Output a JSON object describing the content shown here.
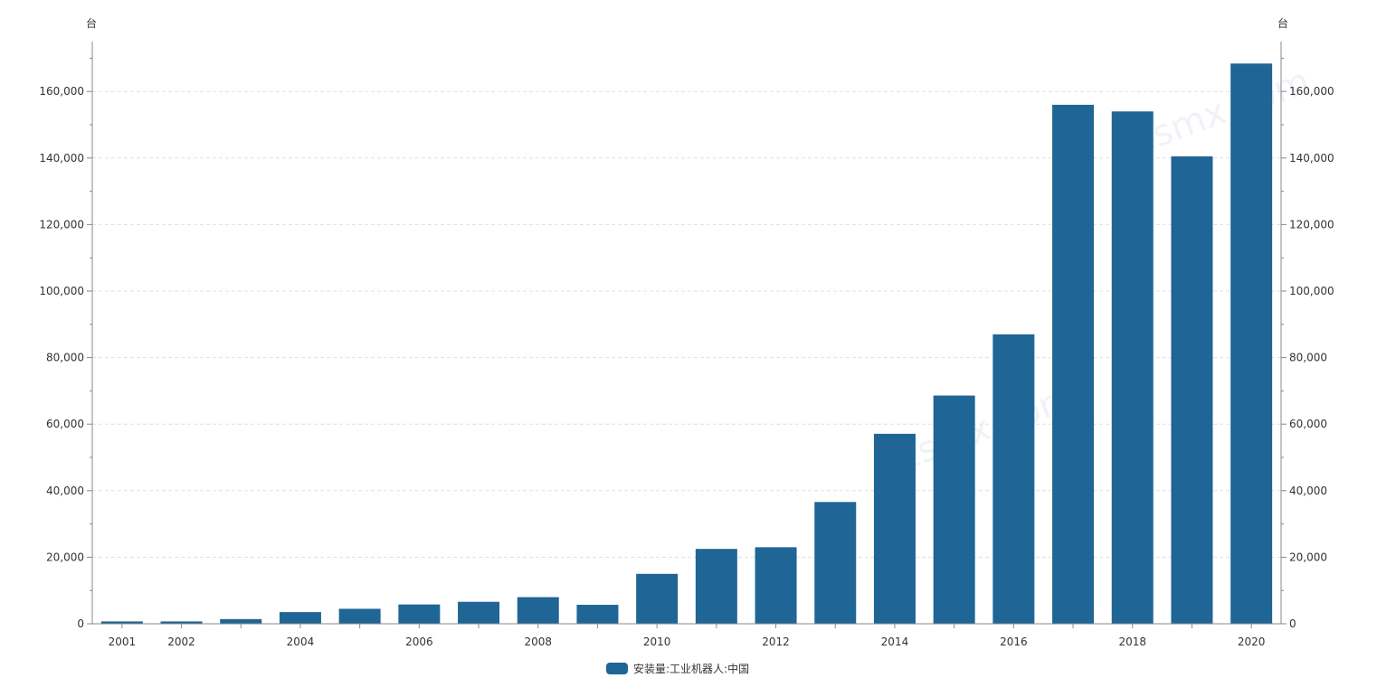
{
  "chart_data": {
    "type": "bar",
    "categories": [
      "2001",
      "2002",
      "2003",
      "2004",
      "2005",
      "2006",
      "2007",
      "2008",
      "2009",
      "2010",
      "2011",
      "2012",
      "2013",
      "2014",
      "2015",
      "2016",
      "2017",
      "2018",
      "2019",
      "2020"
    ],
    "series": [
      {
        "name": "安装量:工业机器人:中国",
        "color": "#1f6595",
        "values": [
          700,
          700,
          1400,
          3500,
          4500,
          5800,
          6600,
          8000,
          5700,
          15000,
          22500,
          23000,
          36600,
          57100,
          68600,
          87000,
          156000,
          154000,
          140500,
          168400
        ]
      }
    ],
    "xtick_labels": [
      "2001",
      "2002",
      "2004",
      "2006",
      "2008",
      "2010",
      "2012",
      "2014",
      "2016",
      "2018",
      "2020"
    ],
    "y_unit_left": "台",
    "y_unit_right": "台",
    "ylim": [
      0,
      175000
    ],
    "yticks": [
      0,
      20000,
      40000,
      60000,
      80000,
      100000,
      120000,
      140000,
      160000
    ],
    "ytick_labels": [
      "0",
      "20,000",
      "40,000",
      "60,000",
      "80,000",
      "100,000",
      "120,000",
      "140,000",
      "160,000"
    ],
    "grid": true,
    "legend_position": "bottom-center",
    "watermark": "zsmx.com"
  }
}
